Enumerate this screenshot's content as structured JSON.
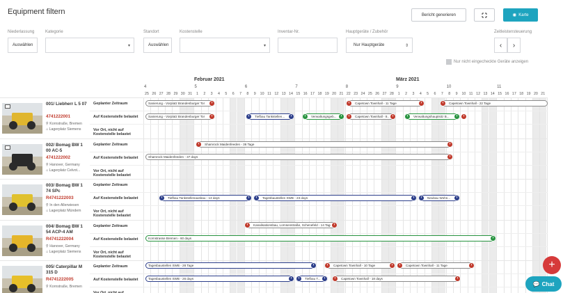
{
  "title": "Equipment filtern",
  "toolbar": {
    "report_label": "Bericht generieren",
    "expand_icon": "expand-icon",
    "map_label": "Karte",
    "map_icon": "globe-icon"
  },
  "filters": {
    "niederlassung": {
      "label": "Niederlassung",
      "value": "Auswählen"
    },
    "kategorie": {
      "label": "Kategorie",
      "value": ""
    },
    "standort": {
      "label": "Standort",
      "value": "Auswählen"
    },
    "kostenstelle": {
      "label": "Kostenstelle",
      "value": ""
    },
    "inventar": {
      "label": "Inventar-Nr.",
      "value": ""
    },
    "hauptgeraete": {
      "label": "Hauptgeräte / Zubehör",
      "value": "Nur Hauptgeräte"
    },
    "zeitleiste": {
      "label": "Zeitleistensteuerung",
      "prev": "‹",
      "next": "›"
    },
    "checkbox_label": "Nur nicht eingecheckte Geräte anzeigen"
  },
  "calendar": {
    "months": [
      "Februar 2021",
      "März 2021"
    ],
    "weeks": [
      "4",
      "5",
      "6",
      "7",
      "8",
      "9",
      "10",
      "11"
    ],
    "days": [
      "25",
      "26",
      "27",
      "28",
      "29",
      "30",
      "31",
      "1",
      "2",
      "3",
      "4",
      "5",
      "6",
      "7",
      "8",
      "9",
      "10",
      "11",
      "12",
      "13",
      "14",
      "15",
      "16",
      "17",
      "18",
      "19",
      "20",
      "21",
      "22",
      "23",
      "24",
      "25",
      "26",
      "27",
      "28",
      "1",
      "2",
      "3",
      "4",
      "5",
      "6",
      "7",
      "8",
      "9",
      "10",
      "11",
      "12",
      "13",
      "14",
      "15",
      "16",
      "17",
      "18",
      "19",
      "20",
      "21"
    ]
  },
  "row_labels": {
    "planned": "Geplanter Zeitraum",
    "cost_center": "Auf Kostenstelle belastet",
    "on_site": "Vor Ort, nicht auf Kostenstelle belastet"
  },
  "machines": [
    {
      "name": "001/ Liebherr L 5 07",
      "number": "4741222001",
      "address": "Kornstraße, Bremen",
      "site": "Lagerplatz Siemens"
    },
    {
      "name": "002/ Bomag BW 1 00 AC-5",
      "number": "4741222002",
      "address": "Hanover, Germany",
      "site": "Lagerplatz Celvot..."
    },
    {
      "name": "003/ Bomag BW 1 74 SPc",
      "number": "R4741222003",
      "address": "In den Allerwiesen",
      "site": "Lagerplatz Mündem"
    },
    {
      "name": "004/ Bomag BW 1 54 ACP-4 AM",
      "number": "R4741222004",
      "address": "Hanover, Germany",
      "site": "Lagerplatz Siemens"
    },
    {
      "name": "005/ Caterpillar M 315 D",
      "number": "R4741222005",
      "address": "Kornstraße, Bremen",
      "site": ""
    }
  ],
  "bars": {
    "b1": "Sanierung - Vorplatz Brandenburger Tor",
    "b2": "Capetown Townhall - 11 Tage",
    "b3": "Capetown Townhall - 22 Tage",
    "b4": "Sanierung - Vorplatz Brandenburger Tor",
    "b5": "Tiefbau Tankstellen...",
    "b6": "Verwaltungsgeb...",
    "b7": "Capetown Townhall - 8...",
    "b8": "Verwaltungshauptsitz B...",
    "b9": "Shamrock Maidenfeeden - 36 Tage",
    "b10": "Shamrock Maidenfeeden - 37 days",
    "b11": "Tiefbau Tankstellenausbau - 13 days",
    "b12": "Tagesbaustellen SWB - 23 days",
    "b13": "Neubau Wohn...",
    "b14": "Kanalisationsbau, Lornsenstraße, Schenefeld - 14 Tage",
    "b15": "Kornstrasse Bremen - 60 days",
    "b16": "Tagesbaustellen SWB - 28 Tage",
    "b17": "Capetown Townhall - 10 Tage",
    "b18": "Capetown Townhall - 11 Tage",
    "b19": "Tagesbaustellen SWB - 26 days",
    "b20": "Tiefbau T...",
    "b21": "Capetown Townhall - 18 days"
  },
  "actions": {
    "add": "+",
    "chat": "Chat",
    "chat_icon": "chat-bubble-icon"
  },
  "colors": {
    "accent": "#1ea4bf",
    "red": "#c0392b",
    "blue": "#2c3e8a",
    "green": "#27933f"
  }
}
